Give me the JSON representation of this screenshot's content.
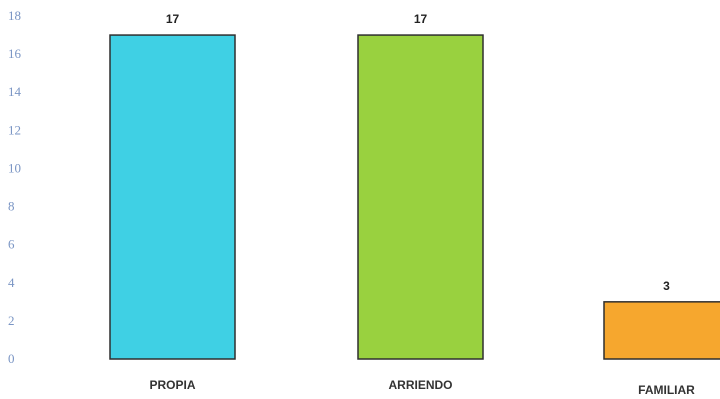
{
  "chart_data": {
    "type": "bar",
    "categories": [
      "PROPIA",
      "ARRIENDO",
      "FAMILIAR"
    ],
    "values": [
      17,
      17,
      3
    ],
    "colors": [
      "#3fd0e4",
      "#99d13f",
      "#f6a72e"
    ],
    "data_labels": [
      "17",
      "17",
      "3"
    ],
    "yticks": [
      "0",
      "2",
      "4",
      "6",
      "8",
      "10",
      "12",
      "14",
      "16",
      "18"
    ],
    "ylim": [
      0,
      18
    ],
    "grid": false,
    "title": "",
    "xlabel": "",
    "ylabel": ""
  }
}
